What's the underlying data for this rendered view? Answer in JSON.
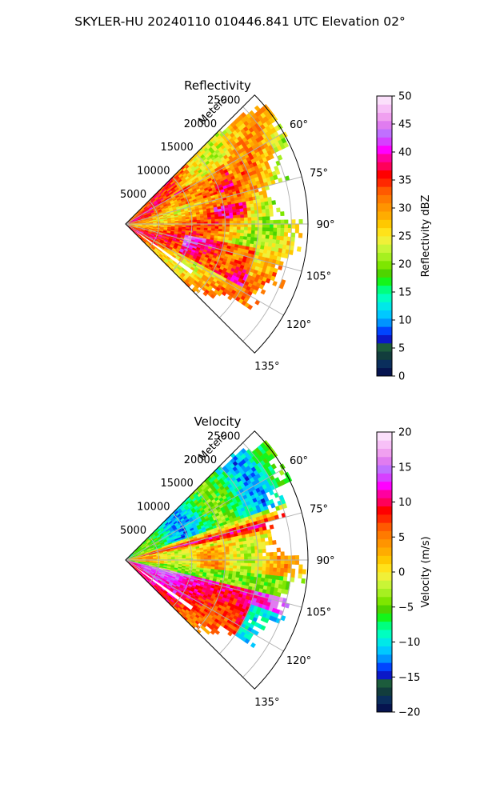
{
  "figure": {
    "title": "SKYLER-HU  20240110  010446.841 UTC Elevation 02°"
  },
  "chart_data": [
    {
      "type": "heatmap",
      "projection": "polar-sector",
      "title": "Reflectivity",
      "range_label": "Meters",
      "range_ticks": [
        "5000",
        "10000",
        "15000",
        "20000",
        "25000"
      ],
      "range_values": [
        5000,
        10000,
        15000,
        20000,
        25000
      ],
      "range_max": 27500,
      "azimuth_ticks": [
        "60°",
        "75°",
        "90°",
        "105°",
        "120°",
        "135°"
      ],
      "azimuth_values": [
        60,
        75,
        90,
        105,
        120,
        135
      ],
      "azimuth_range": [
        45,
        135
      ],
      "grid": true,
      "colorbar": {
        "label": "Reflectivity dBZ",
        "min": 0,
        "max": 50,
        "ticks": [
          "0",
          "5",
          "10",
          "15",
          "20",
          "25",
          "30",
          "35",
          "40",
          "45",
          "50"
        ],
        "colors": [
          "#06144f",
          "#0a2e5c",
          "#123d3d",
          "#1c5c3c",
          "#0b18c8",
          "#0044ff",
          "#0094ff",
          "#00c8ff",
          "#00e8e8",
          "#00ffc0",
          "#00ff7f",
          "#14f51a",
          "#4ed400",
          "#7ee600",
          "#a6f020",
          "#c9f536",
          "#f0f038",
          "#ffe21a",
          "#ffc800",
          "#ffac00",
          "#ff9400",
          "#ff7a00",
          "#ff5a00",
          "#ff2800",
          "#ff0000",
          "#ff005a",
          "#ff00a0",
          "#ff00ff",
          "#d640ff",
          "#c070ff",
          "#e07cf0",
          "#f0a0f0",
          "#f7c0f7",
          "#fbe0fb"
        ]
      }
    },
    {
      "type": "heatmap",
      "projection": "polar-sector",
      "title": "Velocity",
      "range_label": "Meters",
      "range_ticks": [
        "5000",
        "10000",
        "15000",
        "20000",
        "25000"
      ],
      "range_values": [
        5000,
        10000,
        15000,
        20000,
        25000
      ],
      "range_max": 27500,
      "azimuth_ticks": [
        "60°",
        "75°",
        "90°",
        "105°",
        "120°",
        "135°"
      ],
      "azimuth_values": [
        60,
        75,
        90,
        105,
        120,
        135
      ],
      "azimuth_range": [
        45,
        135
      ],
      "grid": true,
      "colorbar": {
        "label": "Velocity (m/s)",
        "min": -20,
        "max": 20,
        "ticks": [
          "−20",
          "−15",
          "−10",
          "−5",
          "0",
          "5",
          "10",
          "15",
          "20"
        ],
        "colors": [
          "#06144f",
          "#0a2e5c",
          "#123d3d",
          "#1c5c3c",
          "#0b18c8",
          "#0044ff",
          "#0094ff",
          "#00c8ff",
          "#00e8e8",
          "#00ffc0",
          "#00ff7f",
          "#14f51a",
          "#4ed400",
          "#7ee600",
          "#a6f020",
          "#c9f536",
          "#f0f038",
          "#ffe21a",
          "#ffc800",
          "#ffac00",
          "#ff9400",
          "#ff7a00",
          "#ff5a00",
          "#ff2800",
          "#ff0000",
          "#ff005a",
          "#ff00a0",
          "#ff00ff",
          "#d640ff",
          "#c070ff",
          "#e07cf0",
          "#f0a0f0",
          "#f7c0f7",
          "#fbe0fb"
        ]
      }
    }
  ]
}
